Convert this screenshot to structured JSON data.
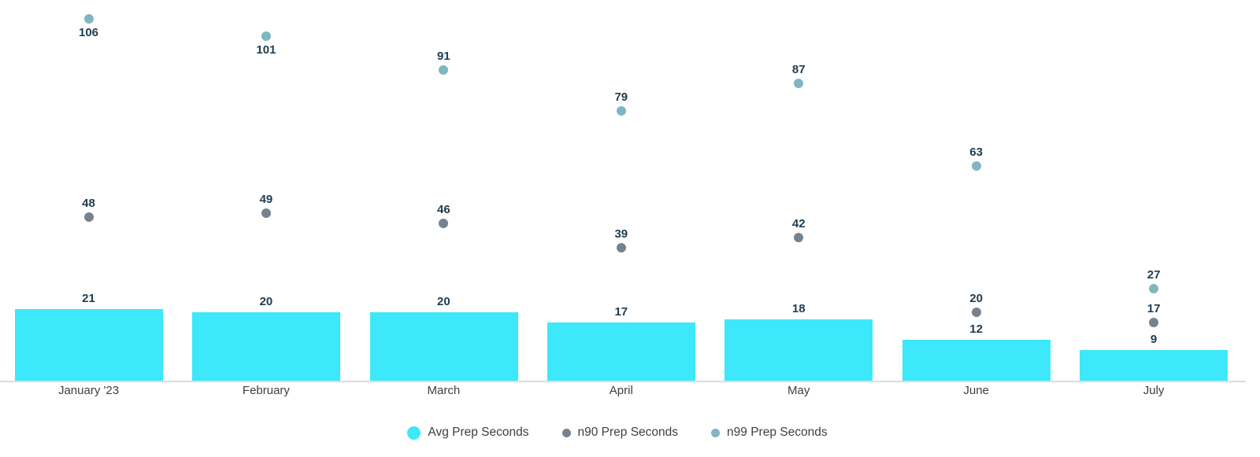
{
  "chart": {
    "background_color": "#ffffff",
    "axis_line_color": "#d9dde3",
    "value_label_color": "#1d3d51",
    "axis_label_color": "#3c4043"
  },
  "chart_data": {
    "type": "bar",
    "subtype": "bar-with-scatter-overlay",
    "categories": [
      "January '23",
      "February",
      "March",
      "April",
      "May",
      "June",
      "July"
    ],
    "series": [
      {
        "name": "Avg Prep Seconds",
        "type": "bar",
        "color": "#3de8fa",
        "values": [
          21,
          20,
          20,
          17,
          18,
          12,
          9
        ]
      },
      {
        "name": "n90 Prep Seconds",
        "type": "scatter",
        "color": "#76838e",
        "values": [
          48,
          49,
          46,
          39,
          42,
          20,
          17
        ],
        "label_below_indices": []
      },
      {
        "name": "n99 Prep Seconds",
        "type": "scatter",
        "color": "#7fb6c0",
        "values": [
          106,
          101,
          91,
          79,
          87,
          63,
          27
        ],
        "label_below_indices": [
          0,
          1
        ]
      }
    ],
    "title": "",
    "xlabel": "",
    "ylabel": "",
    "ylim": [
      0,
      111.5
    ],
    "grid": false,
    "y_axis_visible": false,
    "data_labels": true,
    "legend_position": "bottom-center"
  }
}
